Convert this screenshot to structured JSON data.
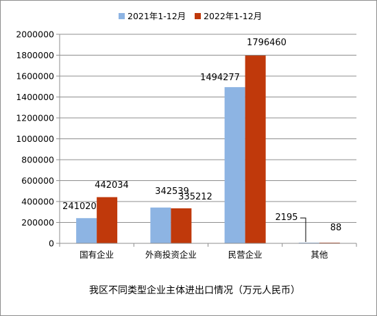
{
  "chart_data": {
    "type": "bar",
    "title": "我区不同类型企业主体进出口情况（万元人民币）",
    "categories": [
      "国有企业",
      "外商投资企业",
      "民营企业",
      "其他"
    ],
    "series": [
      {
        "name": "2021年1-12月",
        "color": "#8db4e3",
        "values": [
          241020,
          342539,
          1494277,
          2195
        ]
      },
      {
        "name": "2022年1-12月",
        "color": "#c0390b",
        "values": [
          442034,
          335212,
          1796460,
          88
        ]
      }
    ],
    "ylim": [
      0,
      2000000
    ],
    "yticks": [
      "0",
      "200000",
      "400000",
      "600000",
      "800000",
      "1000000",
      "1200000",
      "1400000",
      "1600000",
      "1800000",
      "2000000"
    ],
    "grid": true,
    "legend_position": "top"
  }
}
